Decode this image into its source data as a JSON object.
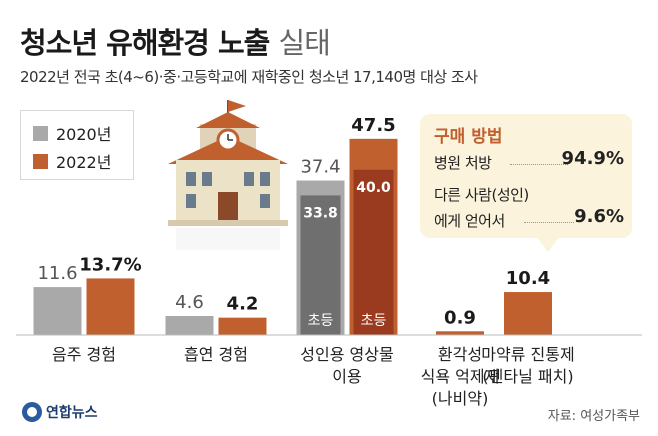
{
  "header": {
    "title_main": "청소년 유해환경 노출",
    "title_light": "실태",
    "subtitle": "2022년 전국 초(4~6)·중·고등학교에 재학중인 청소년 17,140명 대상 조사"
  },
  "colors": {
    "y2020": "#a9a9a9",
    "y2022": "#c0602e",
    "dark2020": "#6f6f6f",
    "dark2022": "#9a3a1e"
  },
  "chart_data": {
    "type": "bar",
    "categories": [
      "음주 경험",
      "흡연 경험",
      "성인용 영상물 이용",
      "환각성 식욕 억제제 (나비약)",
      "마약류 진통제 (펜타닐 패치)"
    ],
    "category_lines": [
      [
        "음주 경험"
      ],
      [
        "흡연 경험"
      ],
      [
        "성인용 영상물",
        "이용"
      ],
      [
        "환각성",
        "식욕 억제제",
        "(나비약)"
      ],
      [
        "마약류 진통제",
        "(펜타닐 패치)"
      ]
    ],
    "series": [
      {
        "name": "2020년",
        "values": [
          11.6,
          4.6,
          37.4,
          null,
          null
        ],
        "labels": [
          "11.6",
          "4.6",
          "37.4",
          "",
          ""
        ]
      },
      {
        "name": "2022년",
        "values": [
          13.7,
          4.2,
          47.5,
          0.9,
          10.4
        ],
        "labels": [
          "13.7%",
          "4.2",
          "47.5",
          "0.9",
          "10.4"
        ]
      }
    ],
    "sub_bars": [
      {
        "category": "성인용 영상물 이용",
        "series": "2020년",
        "label": "초등",
        "value": 33.8,
        "value_label": "33.8"
      },
      {
        "category": "성인용 영상물 이용",
        "series": "2022년",
        "label": "초등",
        "value": 40.0,
        "value_label": "40.0"
      }
    ],
    "ylim": [
      0,
      50
    ],
    "legend": "top-left",
    "grid": false
  },
  "callout": {
    "title": "구매 방법",
    "row1_label": "병원 처방",
    "row1_value": "94.9%",
    "row2_label_line1": "다른 사람(성인)",
    "row2_label_line2": "에게 얻어서",
    "row2_value": "9.6%"
  },
  "footer": {
    "source": "자료: 여성가족부",
    "logo": "연합뉴스"
  }
}
